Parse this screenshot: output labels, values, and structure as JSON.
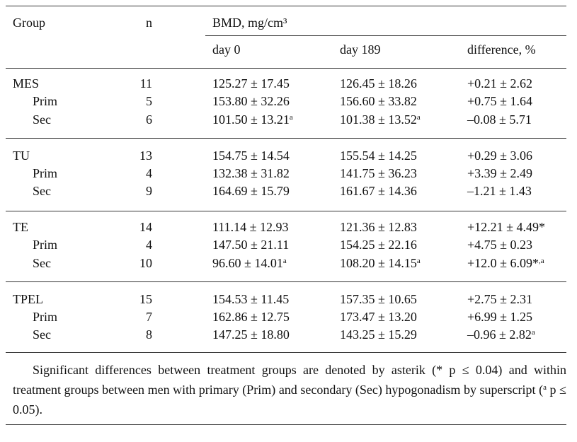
{
  "header": {
    "group": "Group",
    "n": "n",
    "bmd": "BMD, mg/cm³",
    "day0": "day 0",
    "day189": "day 189",
    "difference": "difference, %"
  },
  "groups": [
    {
      "rows": [
        {
          "cells": [
            "MES",
            "11",
            {
              "text": "125.27 ± 17.45"
            },
            {
              "text": "126.45 ± 18.26"
            },
            {
              "text": "+0.21 ± 2.62"
            }
          ]
        },
        {
          "cells": [
            "Prim",
            "5",
            {
              "text": "153.80 ± 32.26"
            },
            {
              "text": "156.60 ± 33.82"
            },
            {
              "text": "+0.75 ± 1.64"
            }
          ]
        },
        {
          "cells": [
            "Sec",
            "6",
            {
              "text": "101.50 ± 13.21",
              "sup": "a"
            },
            {
              "text": "101.38 ± 13.52",
              "sup": "a"
            },
            {
              "text": "–0.08 ± 5.71"
            }
          ]
        }
      ]
    },
    {
      "rows": [
        {
          "cells": [
            "TU",
            "13",
            {
              "text": "154.75 ± 14.54"
            },
            {
              "text": "155.54 ± 14.25"
            },
            {
              "text": "+0.29 ± 3.06"
            }
          ]
        },
        {
          "cells": [
            "Prim",
            "4",
            {
              "text": "132.38 ± 31.82"
            },
            {
              "text": "141.75 ± 36.23"
            },
            {
              "text": "+3.39 ± 2.49"
            }
          ]
        },
        {
          "cells": [
            "Sec",
            "9",
            {
              "text": "164.69 ± 15.79"
            },
            {
              "text": "161.67 ± 14.36"
            },
            {
              "text": "–1.21 ± 1.43"
            }
          ]
        }
      ]
    },
    {
      "rows": [
        {
          "cells": [
            "TE",
            "14",
            {
              "text": "111.14 ± 12.93"
            },
            {
              "text": "121.36 ± 12.83"
            },
            {
              "text": "+12.21 ± 4.49*"
            }
          ]
        },
        {
          "cells": [
            "Prim",
            "4",
            {
              "text": "147.50 ± 21.11"
            },
            {
              "text": "154.25 ± 22.16"
            },
            {
              "text": "+4.75 ± 0.23"
            }
          ]
        },
        {
          "cells": [
            "Sec",
            "10",
            {
              "text": "96.60 ± 14.01",
              "sup": "a"
            },
            {
              "text": "108.20 ± 14.15",
              "sup": "a"
            },
            {
              "text": "+12.0 ± 6.09*",
              "sup": ",a"
            }
          ]
        }
      ]
    },
    {
      "rows": [
        {
          "cells": [
            "TPEL",
            "15",
            {
              "text": "154.53 ± 11.45"
            },
            {
              "text": "157.35 ± 10.65"
            },
            {
              "text": "+2.75 ± 2.31"
            }
          ]
        },
        {
          "cells": [
            "Prim",
            "7",
            {
              "text": "162.86 ± 12.75"
            },
            {
              "text": "173.47 ± 13.20"
            },
            {
              "text": "+6.99 ± 1.25"
            }
          ]
        },
        {
          "cells": [
            "Sec",
            "8",
            {
              "text": "147.25 ± 18.80"
            },
            {
              "text": "143.25 ± 15.29"
            },
            {
              "text": "–0.96 ± 2.82",
              "sup": "a"
            }
          ]
        }
      ]
    }
  ],
  "footnote": {
    "before": "Significant differences between treatment groups are denoted by asterik (* p ≤ 0.04) and within treatment groups between men with primary (Prim) and secondary (Sec) hypogonadism by superscript (",
    "sup": "a",
    "after": " p ≤ 0.05)."
  }
}
